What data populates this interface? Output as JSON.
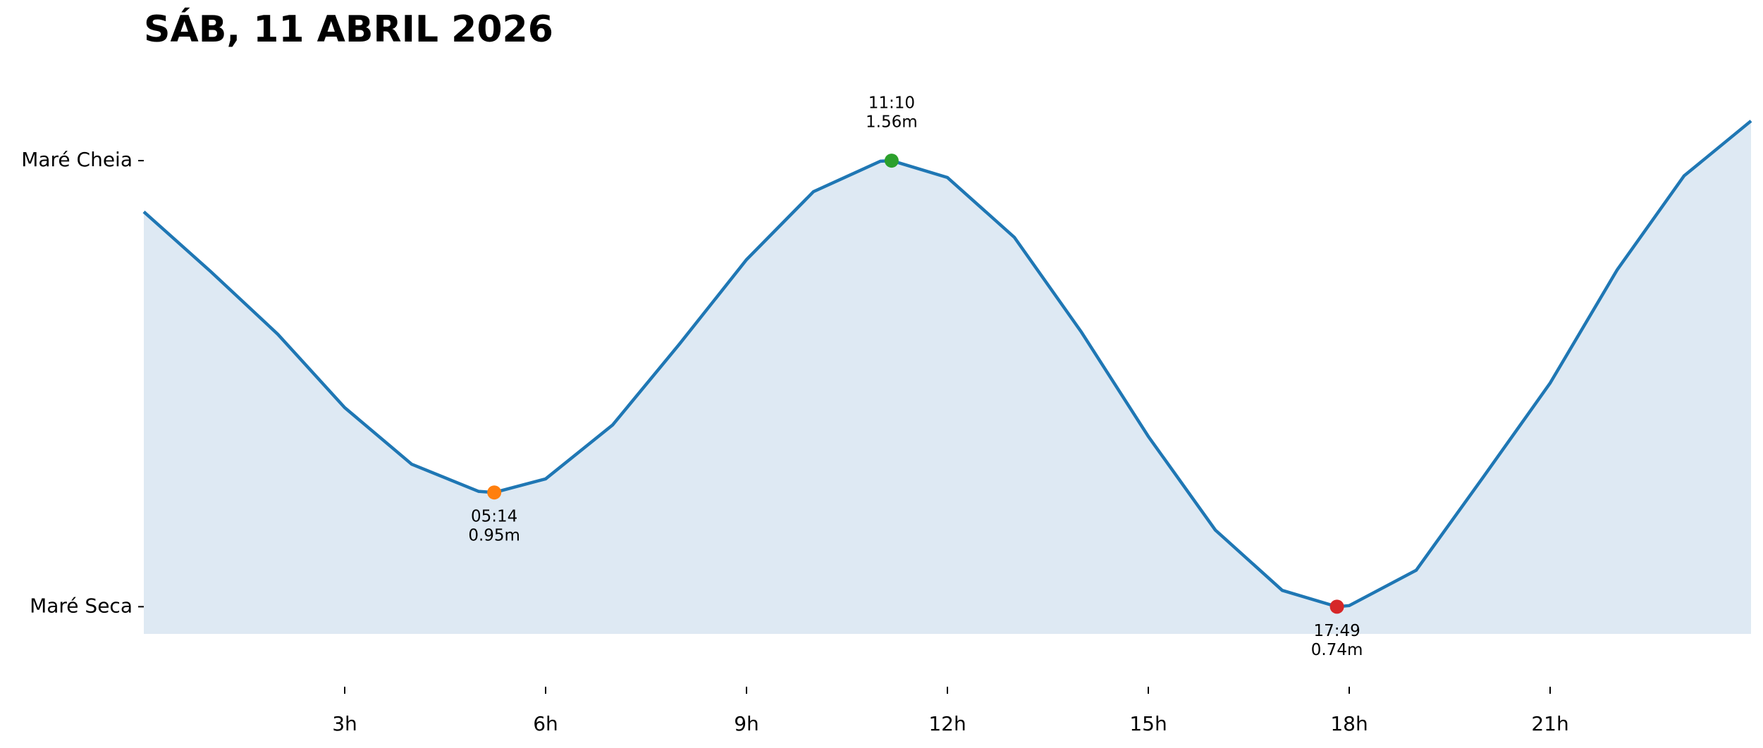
{
  "chart_data": {
    "type": "area",
    "title": "SÁB, 11 ABRIL 2026",
    "x": [
      0,
      1,
      2,
      3,
      4,
      5,
      5.2333,
      6,
      7,
      8,
      9,
      10,
      11,
      11.1667,
      12,
      13,
      14,
      15,
      16,
      17,
      17.8167,
      18,
      19,
      20,
      21,
      22,
      23,
      24
    ],
    "series": [
      {
        "color": "#1f77b4",
        "fill": "#dee9f3",
        "values": [
          1.466,
          1.356,
          1.241,
          1.106,
          1.002,
          0.952,
          0.95,
          0.975,
          1.074,
          1.223,
          1.378,
          1.503,
          1.559,
          1.56,
          1.529,
          1.419,
          1.245,
          1.053,
          0.881,
          0.77,
          0.74,
          0.742,
          0.807,
          0.978,
          1.151,
          1.359,
          1.532,
          1.633
        ]
      }
    ],
    "extremes": [
      {
        "time": "05:14",
        "x": 5.2333,
        "value": 0.95,
        "value_label": "0.95m",
        "color": "#ff7f0e",
        "label_position": "below"
      },
      {
        "time": "11:10",
        "x": 11.1667,
        "value": 1.56,
        "value_label": "1.56m",
        "color": "#2ca02c",
        "label_position": "above"
      },
      {
        "time": "17:49",
        "x": 17.8167,
        "value": 0.74,
        "value_label": "0.74m",
        "color": "#d62728",
        "label_position": "below"
      }
    ],
    "xlim": [
      0,
      24
    ],
    "xticks": [
      {
        "value": 3,
        "label": "3h"
      },
      {
        "value": 6,
        "label": "6h"
      },
      {
        "value": 9,
        "label": "9h"
      },
      {
        "value": 12,
        "label": "12h"
      },
      {
        "value": 15,
        "label": "15h"
      },
      {
        "value": 18,
        "label": "18h"
      },
      {
        "value": 21,
        "label": "21h"
      }
    ],
    "ylim": [
      0.69,
      1.72
    ],
    "yticks": [
      {
        "value": 1.56,
        "label": "Maré Cheia"
      },
      {
        "value": 0.74,
        "label": "Maré Seca"
      }
    ]
  }
}
